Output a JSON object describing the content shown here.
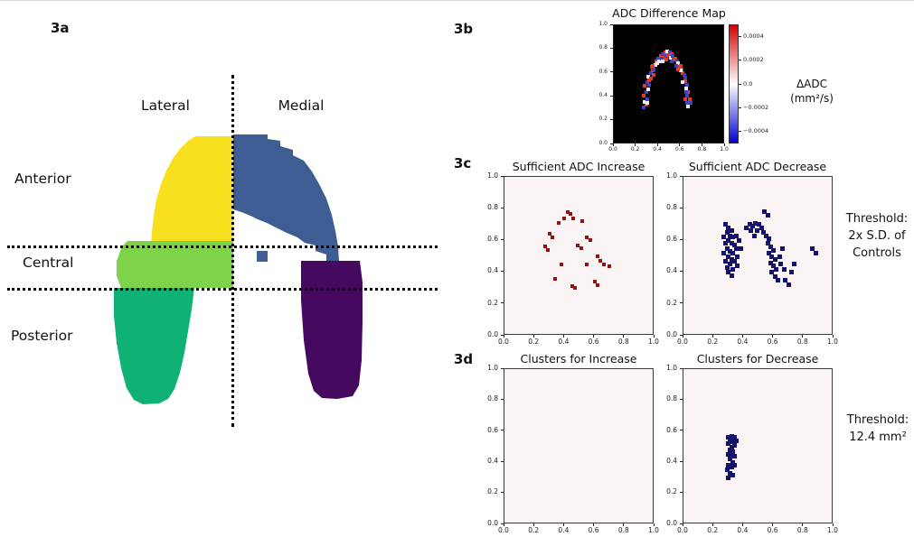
{
  "figure": {
    "panel_labels": {
      "a": "3a",
      "b": "3b",
      "c": "3c",
      "d": "3d"
    },
    "panel_a": {
      "top_labels": {
        "lateral": "Lateral",
        "medial": "Medial"
      },
      "side_labels": {
        "anterior": "Anterior",
        "central": "Central",
        "posterior": "Posterior"
      },
      "regions": [
        {
          "name": "anterior-lateral",
          "color": "#f8e01e"
        },
        {
          "name": "anterior-medial",
          "color": "#3e5d92"
        },
        {
          "name": "central-lateral",
          "color": "#7dd44a"
        },
        {
          "name": "posterior-lateral",
          "color": "#0fb274"
        },
        {
          "name": "posterior-medial",
          "color": "#45095f"
        }
      ]
    },
    "annotations": {
      "c_lines": [
        "Threshold:",
        "2x S.D. of",
        "Controls"
      ],
      "d_lines": [
        "Threshold:",
        "12.4 mm²"
      ]
    }
  },
  "chart_data": [
    {
      "id": "adc-difference-map",
      "type": "heatmap",
      "title": "ADC Difference Map",
      "xlim": [
        0,
        1
      ],
      "ylim": [
        0,
        1
      ],
      "xticks": [
        "0.0",
        "0.2",
        "0.4",
        "0.6",
        "0.8",
        "1.0"
      ],
      "yticks": [
        "0.0",
        "0.2",
        "0.4",
        "0.6",
        "0.8",
        "1.0"
      ],
      "background": "#000000",
      "point_colors": {
        "r": "#e23b2e",
        "w": "#f2ecec",
        "b": "#3b44c8"
      },
      "colorbar": {
        "label_line1": "ΔADC",
        "label_line2": "(mm²/s)",
        "ticks": [
          "0.0004",
          "0.0002",
          "0.0",
          "−0.0002",
          "−0.0004"
        ],
        "range": [
          -0.0005,
          0.0005
        ],
        "colormap": [
          "#d40000",
          "#ffffff",
          "#0000d4"
        ]
      },
      "points": [
        [
          0.27,
          0.31,
          "b"
        ],
        [
          0.29,
          0.33,
          "r"
        ],
        [
          0.28,
          0.36,
          "w"
        ],
        [
          0.3,
          0.38,
          "b"
        ],
        [
          0.27,
          0.41,
          "r"
        ],
        [
          0.29,
          0.44,
          "b"
        ],
        [
          0.31,
          0.46,
          "w"
        ],
        [
          0.28,
          0.49,
          "r"
        ],
        [
          0.3,
          0.52,
          "b"
        ],
        [
          0.32,
          0.54,
          "r"
        ],
        [
          0.31,
          0.57,
          "w"
        ],
        [
          0.33,
          0.6,
          "b"
        ],
        [
          0.35,
          0.62,
          "r"
        ],
        [
          0.34,
          0.65,
          "b"
        ],
        [
          0.37,
          0.67,
          "w"
        ],
        [
          0.38,
          0.7,
          "r"
        ],
        [
          0.4,
          0.72,
          "b"
        ],
        [
          0.42,
          0.74,
          "r"
        ],
        [
          0.36,
          0.63,
          "b"
        ],
        [
          0.39,
          0.68,
          "w"
        ],
        [
          0.44,
          0.76,
          "b"
        ],
        [
          0.46,
          0.77,
          "r"
        ],
        [
          0.48,
          0.78,
          "w"
        ],
        [
          0.5,
          0.77,
          "b"
        ],
        [
          0.52,
          0.76,
          "r"
        ],
        [
          0.45,
          0.73,
          "r"
        ],
        [
          0.47,
          0.74,
          "b"
        ],
        [
          0.49,
          0.75,
          "r"
        ],
        [
          0.51,
          0.73,
          "w"
        ],
        [
          0.53,
          0.74,
          "b"
        ],
        [
          0.55,
          0.72,
          "r"
        ],
        [
          0.57,
          0.7,
          "b"
        ],
        [
          0.58,
          0.68,
          "w"
        ],
        [
          0.6,
          0.66,
          "r"
        ],
        [
          0.61,
          0.63,
          "b"
        ],
        [
          0.62,
          0.6,
          "r"
        ],
        [
          0.63,
          0.58,
          "b"
        ],
        [
          0.6,
          0.62,
          "w"
        ],
        [
          0.59,
          0.65,
          "r"
        ],
        [
          0.64,
          0.56,
          "b"
        ],
        [
          0.64,
          0.53,
          "r"
        ],
        [
          0.66,
          0.5,
          "b"
        ],
        [
          0.65,
          0.47,
          "w"
        ],
        [
          0.67,
          0.44,
          "r"
        ],
        [
          0.66,
          0.41,
          "b"
        ],
        [
          0.68,
          0.38,
          "r"
        ],
        [
          0.66,
          0.35,
          "b"
        ],
        [
          0.67,
          0.32,
          "w"
        ],
        [
          0.65,
          0.44,
          "b"
        ],
        [
          0.64,
          0.38,
          "r"
        ],
        [
          0.36,
          0.58,
          "r"
        ],
        [
          0.41,
          0.7,
          "w"
        ],
        [
          0.43,
          0.72,
          "b"
        ],
        [
          0.54,
          0.71,
          "r"
        ],
        [
          0.56,
          0.66,
          "b"
        ],
        [
          0.33,
          0.55,
          "r"
        ],
        [
          0.62,
          0.52,
          "w"
        ],
        [
          0.3,
          0.35,
          "w"
        ],
        [
          0.69,
          0.35,
          "b"
        ],
        [
          0.47,
          0.71,
          "r"
        ],
        [
          0.32,
          0.5,
          "b"
        ],
        [
          0.35,
          0.66,
          "r"
        ],
        [
          0.44,
          0.7,
          "w"
        ],
        [
          0.52,
          0.7,
          "b"
        ],
        [
          0.58,
          0.63,
          "r"
        ]
      ]
    },
    {
      "id": "sufficient-adc-increase",
      "type": "scatter",
      "title": "Sufficient ADC Increase",
      "xlim": [
        0,
        1
      ],
      "ylim": [
        0,
        1
      ],
      "xticks": [
        "0.0",
        "0.2",
        "0.4",
        "0.6",
        "0.8",
        "1.0"
      ],
      "yticks": [
        "0.0",
        "0.2",
        "0.4",
        "0.6",
        "0.8",
        "1.0"
      ],
      "background": "#fbf4f4",
      "point_color": "#951212",
      "points": [
        [
          0.42,
          0.78
        ],
        [
          0.44,
          0.77
        ],
        [
          0.4,
          0.74
        ],
        [
          0.46,
          0.74
        ],
        [
          0.36,
          0.71
        ],
        [
          0.52,
          0.72
        ],
        [
          0.3,
          0.64
        ],
        [
          0.32,
          0.62
        ],
        [
          0.55,
          0.62
        ],
        [
          0.57,
          0.6
        ],
        [
          0.27,
          0.56
        ],
        [
          0.29,
          0.54
        ],
        [
          0.49,
          0.57
        ],
        [
          0.51,
          0.55
        ],
        [
          0.62,
          0.5
        ],
        [
          0.64,
          0.47
        ],
        [
          0.66,
          0.45
        ],
        [
          0.34,
          0.36
        ],
        [
          0.45,
          0.31
        ],
        [
          0.47,
          0.3
        ],
        [
          0.6,
          0.34
        ],
        [
          0.62,
          0.32
        ],
        [
          0.38,
          0.45
        ],
        [
          0.7,
          0.44
        ],
        [
          0.55,
          0.45
        ]
      ]
    },
    {
      "id": "sufficient-adc-decrease",
      "type": "scatter",
      "title": "Sufficient ADC Decrease",
      "xlim": [
        0,
        1
      ],
      "ylim": [
        0,
        1
      ],
      "xticks": [
        "0.0",
        "0.2",
        "0.4",
        "0.6",
        "0.8",
        "1.0"
      ],
      "yticks": [
        "0.0",
        "0.2",
        "0.4",
        "0.6",
        "0.8",
        "1.0"
      ],
      "background": "#fbf4f4",
      "point_color": "#15126b",
      "points": [
        [
          0.28,
          0.7
        ],
        [
          0.3,
          0.68
        ],
        [
          0.32,
          0.66
        ],
        [
          0.29,
          0.65
        ],
        [
          0.31,
          0.63
        ],
        [
          0.27,
          0.62
        ],
        [
          0.33,
          0.62
        ],
        [
          0.3,
          0.6
        ],
        [
          0.28,
          0.58
        ],
        [
          0.32,
          0.58
        ],
        [
          0.34,
          0.57
        ],
        [
          0.29,
          0.55
        ],
        [
          0.31,
          0.53
        ],
        [
          0.27,
          0.52
        ],
        [
          0.33,
          0.52
        ],
        [
          0.3,
          0.5
        ],
        [
          0.32,
          0.48
        ],
        [
          0.28,
          0.47
        ],
        [
          0.34,
          0.47
        ],
        [
          0.31,
          0.45
        ],
        [
          0.29,
          0.43
        ],
        [
          0.33,
          0.42
        ],
        [
          0.3,
          0.4
        ],
        [
          0.32,
          0.38
        ],
        [
          0.35,
          0.55
        ],
        [
          0.36,
          0.5
        ],
        [
          0.37,
          0.6
        ],
        [
          0.38,
          0.55
        ],
        [
          0.36,
          0.44
        ],
        [
          0.35,
          0.63
        ],
        [
          0.42,
          0.68
        ],
        [
          0.44,
          0.7
        ],
        [
          0.46,
          0.69
        ],
        [
          0.48,
          0.71
        ],
        [
          0.5,
          0.7
        ],
        [
          0.52,
          0.68
        ],
        [
          0.45,
          0.66
        ],
        [
          0.49,
          0.66
        ],
        [
          0.53,
          0.65
        ],
        [
          0.47,
          0.63
        ],
        [
          0.54,
          0.78
        ],
        [
          0.56,
          0.76
        ],
        [
          0.55,
          0.63
        ],
        [
          0.57,
          0.61
        ],
        [
          0.56,
          0.58
        ],
        [
          0.58,
          0.56
        ],
        [
          0.6,
          0.54
        ],
        [
          0.57,
          0.52
        ],
        [
          0.59,
          0.5
        ],
        [
          0.61,
          0.48
        ],
        [
          0.58,
          0.46
        ],
        [
          0.6,
          0.44
        ],
        [
          0.62,
          0.42
        ],
        [
          0.59,
          0.4
        ],
        [
          0.61,
          0.37
        ],
        [
          0.63,
          0.35
        ],
        [
          0.65,
          0.45
        ],
        [
          0.67,
          0.42
        ],
        [
          0.64,
          0.5
        ],
        [
          0.66,
          0.55
        ],
        [
          0.68,
          0.35
        ],
        [
          0.7,
          0.32
        ],
        [
          0.72,
          0.4
        ],
        [
          0.74,
          0.45
        ],
        [
          0.86,
          0.55
        ],
        [
          0.88,
          0.52
        ]
      ]
    },
    {
      "id": "clusters-for-increase",
      "type": "scatter",
      "title": "Clusters for Increase",
      "xlim": [
        0,
        1
      ],
      "ylim": [
        0,
        1
      ],
      "xticks": [
        "0.0",
        "0.2",
        "0.4",
        "0.6",
        "0.8",
        "1.0"
      ],
      "yticks": [
        "0.0",
        "0.2",
        "0.4",
        "0.6",
        "0.8",
        "1.0"
      ],
      "background": "#fbf4f4",
      "point_color": "#951212",
      "points": []
    },
    {
      "id": "clusters-for-decrease",
      "type": "scatter",
      "title": "Clusters for Decrease",
      "xlim": [
        0,
        1
      ],
      "ylim": [
        0,
        1
      ],
      "xticks": [
        "0.0",
        "0.2",
        "0.4",
        "0.6",
        "0.8",
        "1.0"
      ],
      "yticks": [
        "0.0",
        "0.2",
        "0.4",
        "0.6",
        "0.8",
        "1.0"
      ],
      "background": "#fbf4f4",
      "point_color": "#15126b",
      "points": [
        [
          0.3,
          0.56
        ],
        [
          0.32,
          0.57
        ],
        [
          0.34,
          0.56
        ],
        [
          0.31,
          0.54
        ],
        [
          0.33,
          0.53
        ],
        [
          0.35,
          0.54
        ],
        [
          0.3,
          0.52
        ],
        [
          0.32,
          0.5
        ],
        [
          0.34,
          0.51
        ],
        [
          0.31,
          0.48
        ],
        [
          0.33,
          0.47
        ],
        [
          0.3,
          0.45
        ],
        [
          0.32,
          0.44
        ],
        [
          0.34,
          0.44
        ],
        [
          0.31,
          0.42
        ],
        [
          0.33,
          0.4
        ],
        [
          0.3,
          0.38
        ],
        [
          0.32,
          0.37
        ],
        [
          0.34,
          0.38
        ],
        [
          0.29,
          0.35
        ],
        [
          0.31,
          0.33
        ],
        [
          0.33,
          0.32
        ],
        [
          0.3,
          0.3
        ]
      ]
    }
  ]
}
